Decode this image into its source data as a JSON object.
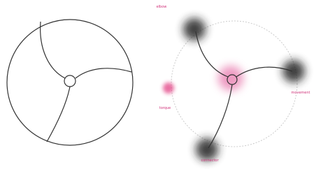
{
  "labels": {
    "top": "elbow",
    "left": "torque",
    "right": "movement",
    "bottom": "connector"
  }
}
